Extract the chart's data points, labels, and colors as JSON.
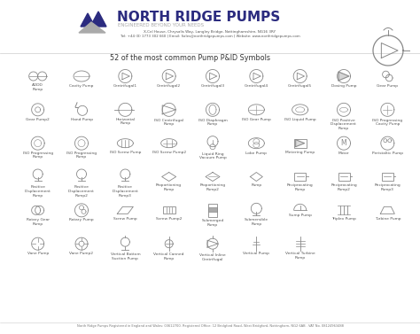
{
  "title": "NORTH RIDGE PUMPS",
  "subtitle": "ENGINEERED BEYOND YOUR NEEDS",
  "address": "X-Cel House, Chrysalis Way, Langley Bridge, Nottinghamshire, NG16 3RY",
  "contact": "Tel: +44 (0) 1773 302 660 | Email: Sales@northridgepumps.com | Website: www.northridgepumps.com",
  "main_heading": "52 of the most common Pump P&ID Symbols",
  "footer": "North Ridge Pumps Registered in England and Wales: 03612700. Registered Office: 12 Bridgford Road, West Bridgford, Nottingham, NG2 6AB . VAT No. 08124963488",
  "bg_color": "#ffffff",
  "symbol_color": "#888888",
  "title_color": "#2b2b7f",
  "subtitle_color": "#aaaaaa",
  "heading_color": "#333333",
  "label_color": "#555555",
  "logo_dark": "#2b2b7f",
  "logo_light": "#aaaaaa"
}
